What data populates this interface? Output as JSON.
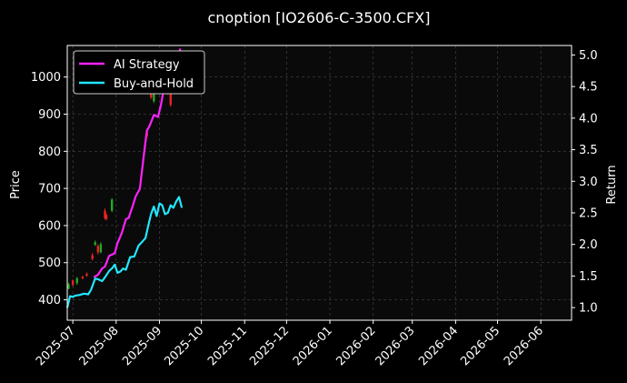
{
  "chart_data": {
    "type": "line",
    "title": "cnoption [IO2606-C-3500.CFX]",
    "ylabel_left": "Price",
    "ylabel_right": "Return",
    "x_ticks": [
      "2025-07",
      "2025-08",
      "2025-09",
      "2025-10",
      "2025-11",
      "2025-12",
      "2026-01",
      "2026-02",
      "2026-03",
      "2026-04",
      "2026-05",
      "2026-06"
    ],
    "x_range": [
      "2025-06-27",
      "2026-06-23"
    ],
    "y_left_ticks": [
      400,
      500,
      600,
      700,
      800,
      900,
      1000
    ],
    "y_left_range": [
      345,
      1085
    ],
    "y_right_ticks": [
      "1.0",
      "1.5",
      "2.0",
      "2.5",
      "3.0",
      "3.5",
      "4.0",
      "4.5",
      "5.0"
    ],
    "y_right_range": [
      0.8,
      5.15
    ],
    "grid": true,
    "legend_position": "top-left",
    "colors": {
      "background": "#000000",
      "plot_bg": "#0a0a0a",
      "grid": "#555555",
      "up": "#22aa22",
      "down": "#ee2222"
    },
    "series": [
      {
        "name": "AI Strategy",
        "axis": "right",
        "color": "#ff22ff",
        "x": [
          "2025-07-16",
          "2025-07-19",
          "2025-07-22",
          "2025-07-24",
          "2025-07-27",
          "2025-07-31",
          "2025-08-02",
          "2025-08-05",
          "2025-08-08",
          "2025-08-10",
          "2025-08-13",
          "2025-08-15",
          "2025-08-18",
          "2025-08-21",
          "2025-08-23",
          "2025-08-25",
          "2025-08-28",
          "2025-08-31",
          "2025-09-02",
          "2025-09-04",
          "2025-09-07",
          "2025-09-10",
          "2025-09-12",
          "2025-09-14",
          "2025-09-16"
        ],
        "values": [
          1.48,
          1.52,
          1.62,
          1.65,
          1.82,
          1.86,
          2.02,
          2.18,
          2.4,
          2.42,
          2.62,
          2.76,
          2.88,
          3.45,
          3.8,
          3.88,
          4.05,
          4.02,
          4.2,
          4.45,
          4.72,
          4.9,
          5.02,
          4.98,
          5.1
        ]
      },
      {
        "name": "Buy-and-Hold",
        "axis": "right",
        "color": "#22e6ff",
        "x": [
          "2025-06-27",
          "2025-06-29",
          "2025-07-01",
          "2025-07-03",
          "2025-07-06",
          "2025-07-09",
          "2025-07-12",
          "2025-07-14",
          "2025-07-17",
          "2025-07-19",
          "2025-07-22",
          "2025-07-24",
          "2025-07-27",
          "2025-07-29",
          "2025-07-31",
          "2025-08-02",
          "2025-08-04",
          "2025-08-06",
          "2025-08-08",
          "2025-08-11",
          "2025-08-14",
          "2025-08-17",
          "2025-08-20",
          "2025-08-22",
          "2025-08-24",
          "2025-08-26",
          "2025-08-28",
          "2025-08-30",
          "2025-09-01",
          "2025-09-03",
          "2025-09-05",
          "2025-09-07",
          "2025-09-09",
          "2025-09-11",
          "2025-09-13",
          "2025-09-15",
          "2025-09-17"
        ],
        "values": [
          1.0,
          1.18,
          1.17,
          1.19,
          1.2,
          1.22,
          1.21,
          1.28,
          1.46,
          1.45,
          1.42,
          1.48,
          1.58,
          1.62,
          1.68,
          1.55,
          1.57,
          1.62,
          1.6,
          1.8,
          1.81,
          1.98,
          2.05,
          2.1,
          2.3,
          2.48,
          2.6,
          2.45,
          2.65,
          2.62,
          2.48,
          2.5,
          2.62,
          2.58,
          2.68,
          2.75,
          2.58
        ]
      }
    ],
    "candles": [
      {
        "x": "2025-06-28",
        "open": 430,
        "close": 442,
        "high": 446,
        "low": 428
      },
      {
        "x": "2025-07-01",
        "open": 452,
        "close": 440,
        "high": 455,
        "low": 436
      },
      {
        "x": "2025-07-04",
        "open": 445,
        "close": 458,
        "high": 462,
        "low": 440
      },
      {
        "x": "2025-07-08",
        "open": 462,
        "close": 458,
        "high": 465,
        "low": 455
      },
      {
        "x": "2025-07-11",
        "open": 470,
        "close": 465,
        "high": 474,
        "low": 462
      },
      {
        "x": "2025-07-15",
        "open": 520,
        "close": 510,
        "high": 526,
        "low": 506
      },
      {
        "x": "2025-07-17",
        "open": 548,
        "close": 555,
        "high": 560,
        "low": 545
      },
      {
        "x": "2025-07-19",
        "open": 545,
        "close": 528,
        "high": 550,
        "low": 522
      },
      {
        "x": "2025-07-21",
        "open": 528,
        "close": 550,
        "high": 555,
        "low": 525
      },
      {
        "x": "2025-07-24",
        "open": 640,
        "close": 620,
        "high": 646,
        "low": 616
      },
      {
        "x": "2025-07-25",
        "open": 628,
        "close": 618,
        "high": 632,
        "low": 614
      },
      {
        "x": "2025-07-29",
        "open": 640,
        "close": 670,
        "high": 674,
        "low": 636
      },
      {
        "x": "2025-08-23",
        "open": 852,
        "close": 840,
        "high": 856,
        "low": 836
      },
      {
        "x": "2025-08-26",
        "open": 965,
        "close": 945,
        "high": 972,
        "low": 940
      },
      {
        "x": "2025-08-28",
        "open": 935,
        "close": 962,
        "high": 968,
        "low": 930
      },
      {
        "x": "2025-09-01",
        "open": 1010,
        "close": 995,
        "high": 1016,
        "low": 990
      },
      {
        "x": "2025-09-07",
        "open": 975,
        "close": 958,
        "high": 980,
        "low": 952
      },
      {
        "x": "2025-09-09",
        "open": 955,
        "close": 925,
        "high": 960,
        "low": 920
      },
      {
        "x": "2025-09-12",
        "open": 1035,
        "close": 1050,
        "high": 1055,
        "low": 1030
      }
    ]
  }
}
